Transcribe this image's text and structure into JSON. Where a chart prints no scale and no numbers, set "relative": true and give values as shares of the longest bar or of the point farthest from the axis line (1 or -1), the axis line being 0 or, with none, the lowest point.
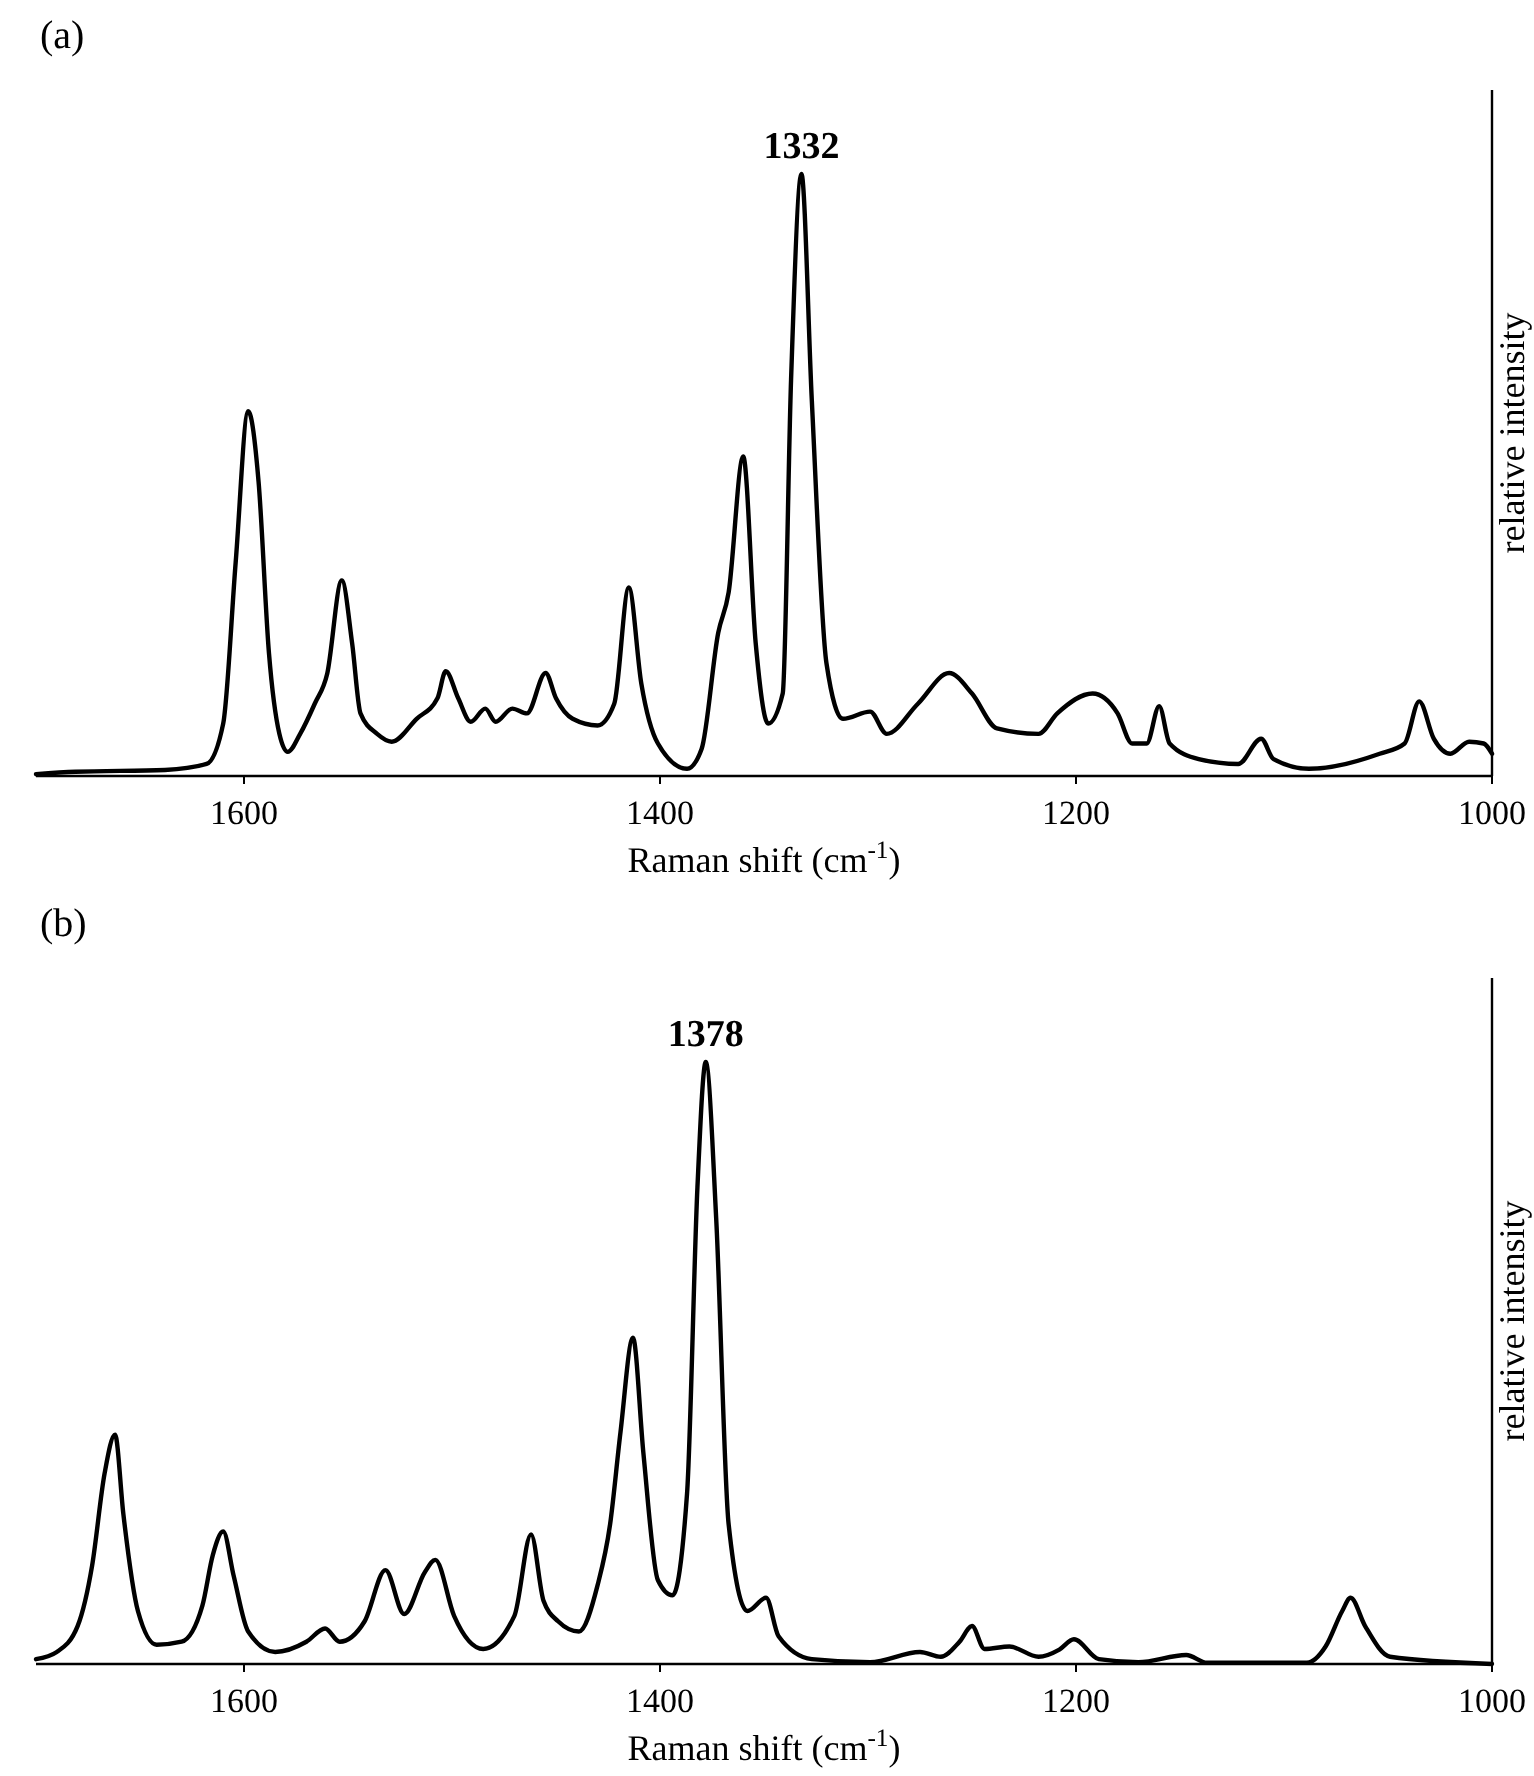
{
  "chart_data": [
    {
      "type": "line",
      "title": "(a)",
      "xlabel": "Raman shift (cm$^{-1}$)",
      "ylabel": "relative intensity",
      "relative": true,
      "color": "#000000",
      "xlim": [
        1700,
        1000
      ],
      "xticks": [
        1600,
        1400,
        1200,
        1000
      ],
      "annotations": [
        {
          "text": "1332",
          "x": 1332,
          "y": 1
        }
      ],
      "x": [
        1700,
        1681,
        1638,
        1618,
        1610,
        1604,
        1598,
        1593,
        1588,
        1583,
        1579,
        1573,
        1566,
        1560,
        1553,
        1548,
        1544,
        1536,
        1529,
        1517,
        1507,
        1503,
        1497,
        1491,
        1484,
        1479,
        1471,
        1464,
        1455,
        1450,
        1442,
        1430,
        1422,
        1415,
        1409,
        1401,
        1387,
        1380,
        1372,
        1367,
        1360,
        1354,
        1348,
        1341,
        1337,
        1332,
        1327,
        1320,
        1312,
        1299,
        1291,
        1276,
        1261,
        1250,
        1238,
        1218,
        1209,
        1192,
        1180,
        1173,
        1166,
        1160,
        1155,
        1141,
        1122,
        1111,
        1105,
        1088,
        1054,
        1042,
        1035,
        1028,
        1020,
        1011,
        1004,
        1000
      ],
      "values": [
        0.003,
        0.007,
        0.01,
        0.02,
        0.087,
        0.355,
        0.606,
        0.489,
        0.204,
        0.07,
        0.04,
        0.07,
        0.12,
        0.17,
        0.325,
        0.22,
        0.104,
        0.07,
        0.057,
        0.095,
        0.129,
        0.174,
        0.129,
        0.09,
        0.112,
        0.09,
        0.112,
        0.104,
        0.171,
        0.129,
        0.095,
        0.084,
        0.12,
        0.313,
        0.154,
        0.054,
        0.012,
        0.045,
        0.238,
        0.305,
        0.531,
        0.221,
        0.087,
        0.137,
        0.657,
        1,
        0.623,
        0.188,
        0.095,
        0.107,
        0.07,
        0.12,
        0.171,
        0.137,
        0.079,
        0.07,
        0.104,
        0.137,
        0.104,
        0.054,
        0.054,
        0.116,
        0.054,
        0.028,
        0.02,
        0.062,
        0.028,
        0.012,
        0.037,
        0.054,
        0.124,
        0.062,
        0.037,
        0.057,
        0.054,
        0.037
      ]
    },
    {
      "type": "line",
      "title": "(b)",
      "xlabel": "Raman shift (cm$^{-1}$)",
      "ylabel": "relative intensity",
      "relative": true,
      "color": "#000000",
      "xlim": [
        1700,
        1000
      ],
      "xticks": [
        1600,
        1400,
        1200,
        1000
      ],
      "annotations": [
        {
          "text": "1378",
          "x": 1378,
          "y": 1
        }
      ],
      "x": [
        1700,
        1690,
        1680,
        1673,
        1667,
        1662,
        1658,
        1651,
        1642,
        1630,
        1620,
        1615,
        1610,
        1605,
        1598,
        1585,
        1570,
        1561,
        1554,
        1542,
        1532,
        1523,
        1513,
        1508,
        1499,
        1485,
        1470,
        1462,
        1456,
        1449,
        1439,
        1430,
        1424,
        1419,
        1413,
        1408,
        1401,
        1394,
        1387,
        1382,
        1378,
        1373,
        1367,
        1358,
        1349,
        1343,
        1327,
        1299,
        1275,
        1265,
        1256,
        1250,
        1244,
        1232,
        1218,
        1208,
        1201,
        1189,
        1170,
        1147,
        1137,
        1089,
        1080,
        1072,
        1068,
        1061,
        1049,
        1000
      ],
      "values": [
        0.008,
        0.02,
        0.063,
        0.164,
        0.317,
        0.381,
        0.249,
        0.088,
        0.032,
        0.037,
        0.097,
        0.181,
        0.22,
        0.147,
        0.054,
        0.02,
        0.037,
        0.059,
        0.037,
        0.071,
        0.156,
        0.083,
        0.153,
        0.173,
        0.08,
        0.025,
        0.08,
        0.215,
        0.105,
        0.071,
        0.054,
        0.131,
        0.232,
        0.385,
        0.542,
        0.351,
        0.139,
        0.114,
        0.283,
        0.792,
        1,
        0.741,
        0.232,
        0.088,
        0.11,
        0.046,
        0.008,
        0.003,
        0.02,
        0.012,
        0.037,
        0.063,
        0.025,
        0.029,
        0.012,
        0.024,
        0.041,
        0.008,
        0.003,
        0.015,
        0.002,
        0.002,
        0.029,
        0.088,
        0.11,
        0.063,
        0.012,
        0
      ]
    }
  ]
}
